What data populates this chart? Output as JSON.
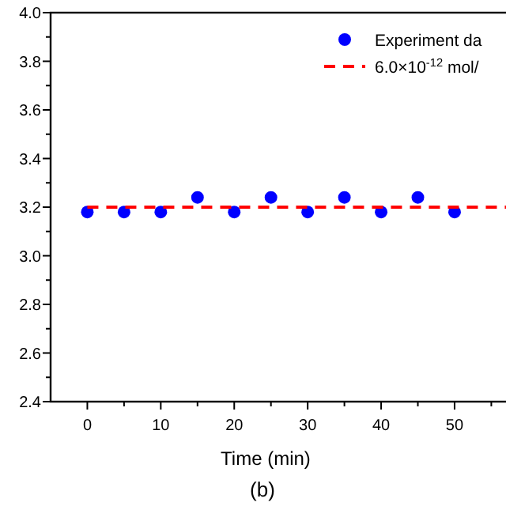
{
  "chart_data": {
    "type": "scatter",
    "x": [
      0,
      5,
      10,
      15,
      20,
      25,
      30,
      35,
      40,
      45,
      50
    ],
    "series": [
      {
        "name": "Experiment da",
        "color": "#0000ff",
        "marker": "circle",
        "values": [
          3.18,
          3.18,
          3.18,
          3.24,
          3.18,
          3.24,
          3.18,
          3.24,
          3.18,
          3.24,
          3.18
        ]
      },
      {
        "name": "6.0×10$^{-12}$ mol/",
        "type": "line",
        "color": "#ff0000",
        "line_style": "dashed",
        "marker": "none",
        "x": [
          0,
          57
        ],
        "values": [
          3.2,
          3.2
        ]
      }
    ],
    "xlabel": "Time (min)",
    "annotations": [
      "(b)"
    ],
    "xlim": [
      -5,
      57
    ],
    "xticks": [
      0,
      {
        "value": 5,
        "label": null
      },
      10,
      {
        "value": 15,
        "label": null
      },
      20,
      {
        "value": 25,
        "label": null
      },
      30,
      {
        "value": 35,
        "label": null
      },
      40,
      {
        "value": 45,
        "label": null
      },
      50,
      {
        "value": 55,
        "label": null
      }
    ],
    "ylim": [
      2.4,
      4.0
    ],
    "yticks": [
      2.4,
      {
        "value": 2.5,
        "label": null
      },
      2.6,
      {
        "value": 2.7,
        "label": null
      },
      2.8,
      {
        "value": 2.9,
        "label": null
      },
      {
        "value": 3,
        "label": "3.0"
      },
      {
        "value": 3.1,
        "label": null
      },
      3.2,
      {
        "value": 3.3,
        "label": null
      },
      3.4,
      {
        "value": 3.5,
        "label": null
      },
      3.6,
      {
        "value": 3.7,
        "label": null
      },
      3.8,
      {
        "value": 3.9,
        "label": null
      },
      {
        "value": 4,
        "label": "4.0"
      }
    ],
    "grid": false,
    "legend": "top right"
  }
}
